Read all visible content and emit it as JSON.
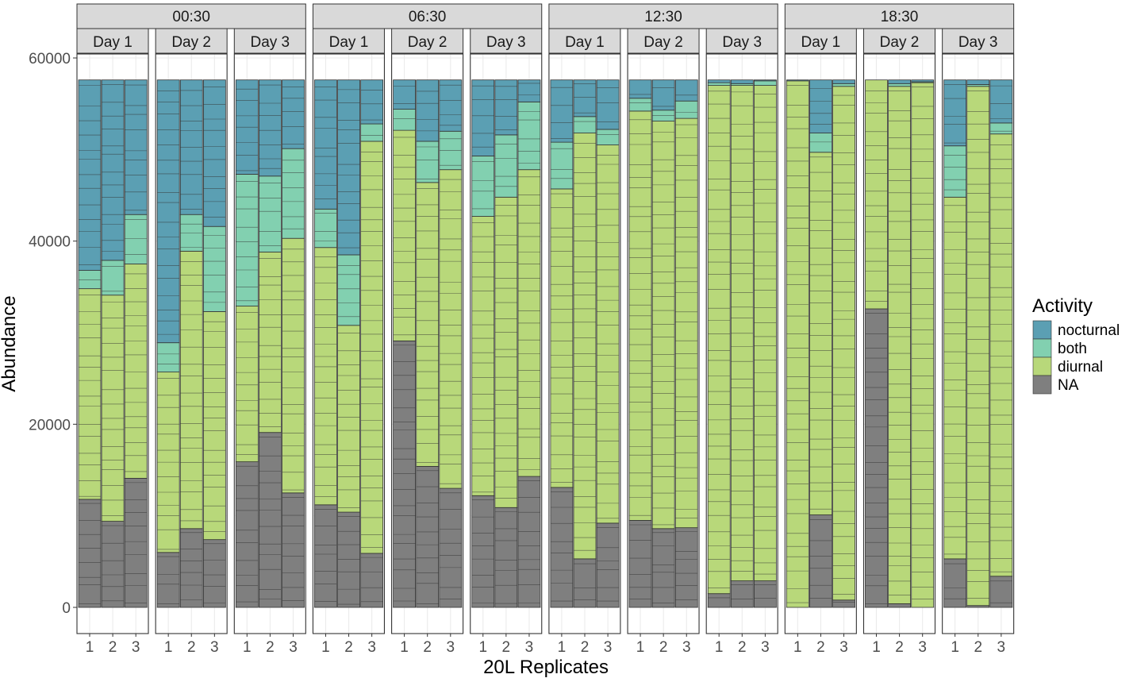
{
  "chart_data": {
    "type": "stacked-bar-faceted",
    "xlabel": "20L Replicates",
    "ylabel": "Abundance",
    "ylim": [
      0,
      64000
    ],
    "yticks": [
      0,
      20000,
      40000,
      60000
    ],
    "ytick_labels": [
      "0",
      "20000",
      "40000",
      "60000"
    ],
    "total": 57600,
    "replicate_labels": [
      "1",
      "2",
      "3"
    ],
    "legend": {
      "title": "Activity",
      "placement": "right",
      "items": [
        {
          "key": "nocturnal",
          "label": "nocturnal",
          "color": "#5b9fb3"
        },
        {
          "key": "both",
          "label": "both",
          "color": "#82d0b0"
        },
        {
          "key": "diurnal",
          "label": "diurnal",
          "color": "#b8d87a"
        },
        {
          "key": "NA",
          "label": "NA",
          "color": "#7f7f7f"
        }
      ]
    },
    "grid": true,
    "times": [
      {
        "label": "00:30",
        "days": [
          {
            "label": "Day 1",
            "replicates": [
              {
                "NA": 11800,
                "diurnal": 23000,
                "both": 2000,
                "nocturnal": 20800
              },
              {
                "NA": 9400,
                "diurnal": 24700,
                "both": 3800,
                "nocturnal": 19700
              },
              {
                "NA": 14100,
                "diurnal": 23400,
                "both": 5400,
                "nocturnal": 14700
              }
            ]
          },
          {
            "label": "Day 2",
            "replicates": [
              {
                "NA": 6000,
                "diurnal": 19700,
                "both": 3200,
                "nocturnal": 28700
              },
              {
                "NA": 8600,
                "diurnal": 30300,
                "both": 4000,
                "nocturnal": 14700
              },
              {
                "NA": 7400,
                "diurnal": 24900,
                "both": 9300,
                "nocturnal": 16000
              }
            ]
          },
          {
            "label": "Day 3",
            "replicates": [
              {
                "NA": 15900,
                "diurnal": 17000,
                "both": 14400,
                "nocturnal": 10300
              },
              {
                "NA": 19100,
                "diurnal": 19700,
                "both": 8300,
                "nocturnal": 10500
              },
              {
                "NA": 12500,
                "diurnal": 27800,
                "both": 9800,
                "nocturnal": 7500
              }
            ]
          }
        ]
      },
      {
        "label": "06:30",
        "days": [
          {
            "label": "Day 1",
            "replicates": [
              {
                "NA": 11200,
                "diurnal": 28100,
                "both": 4200,
                "nocturnal": 14100
              },
              {
                "NA": 10400,
                "diurnal": 20400,
                "both": 7700,
                "nocturnal": 19100
              },
              {
                "NA": 5900,
                "diurnal": 45000,
                "both": 1900,
                "nocturnal": 4800
              }
            ]
          },
          {
            "label": "Day 2",
            "replicates": [
              {
                "NA": 29100,
                "diurnal": 23000,
                "both": 2300,
                "nocturnal": 3200
              },
              {
                "NA": 15400,
                "diurnal": 31000,
                "both": 4500,
                "nocturnal": 6700
              },
              {
                "NA": 13000,
                "diurnal": 34800,
                "both": 4200,
                "nocturnal": 5600
              }
            ]
          },
          {
            "label": "Day 3",
            "replicates": [
              {
                "NA": 12200,
                "diurnal": 30500,
                "both": 6600,
                "nocturnal": 8300
              },
              {
                "NA": 10900,
                "diurnal": 33900,
                "both": 6800,
                "nocturnal": 6000
              },
              {
                "NA": 14300,
                "diurnal": 33500,
                "both": 7400,
                "nocturnal": 2400
              }
            ]
          }
        ]
      },
      {
        "label": "12:30",
        "days": [
          {
            "label": "Day 1",
            "replicates": [
              {
                "NA": 13100,
                "diurnal": 32600,
                "both": 5100,
                "nocturnal": 6800
              },
              {
                "NA": 5300,
                "diurnal": 46500,
                "both": 1800,
                "nocturnal": 4000
              },
              {
                "NA": 9200,
                "diurnal": 41300,
                "both": 1700,
                "nocturnal": 5400
              }
            ]
          },
          {
            "label": "Day 2",
            "replicates": [
              {
                "NA": 9500,
                "diurnal": 44700,
                "both": 1400,
                "nocturnal": 2000
              },
              {
                "NA": 8600,
                "diurnal": 44500,
                "both": 1200,
                "nocturnal": 3300
              },
              {
                "NA": 8700,
                "diurnal": 44700,
                "both": 1900,
                "nocturnal": 2300
              }
            ]
          },
          {
            "label": "Day 3",
            "replicates": [
              {
                "NA": 1500,
                "diurnal": 55500,
                "both": 300,
                "nocturnal": 300
              },
              {
                "NA": 2900,
                "diurnal": 54100,
                "both": 200,
                "nocturnal": 400
              },
              {
                "NA": 2900,
                "diurnal": 54100,
                "both": 500,
                "nocturnal": 100
              }
            ]
          }
        ]
      },
      {
        "label": "18:30",
        "days": [
          {
            "label": "Day 1",
            "replicates": [
              {
                "NA": 0,
                "diurnal": 57500,
                "both": 0,
                "nocturnal": 100
              },
              {
                "NA": 10100,
                "diurnal": 39600,
                "both": 2100,
                "nocturnal": 5800
              },
              {
                "NA": 800,
                "diurnal": 56100,
                "both": 300,
                "nocturnal": 400
              }
            ]
          },
          {
            "label": "Day 2",
            "replicates": [
              {
                "NA": 32600,
                "diurnal": 25000,
                "both": 0,
                "nocturnal": 0
              },
              {
                "NA": 400,
                "diurnal": 56500,
                "both": 300,
                "nocturnal": 400
              },
              {
                "NA": 0,
                "diurnal": 57300,
                "both": 100,
                "nocturnal": 200
              }
            ]
          },
          {
            "label": "Day 3",
            "replicates": [
              {
                "NA": 5300,
                "diurnal": 39500,
                "both": 5600,
                "nocturnal": 7200
              },
              {
                "NA": 200,
                "diurnal": 56700,
                "both": 200,
                "nocturnal": 500
              },
              {
                "NA": 3400,
                "diurnal": 48300,
                "both": 1200,
                "nocturnal": 4700
              }
            ]
          }
        ]
      }
    ]
  }
}
